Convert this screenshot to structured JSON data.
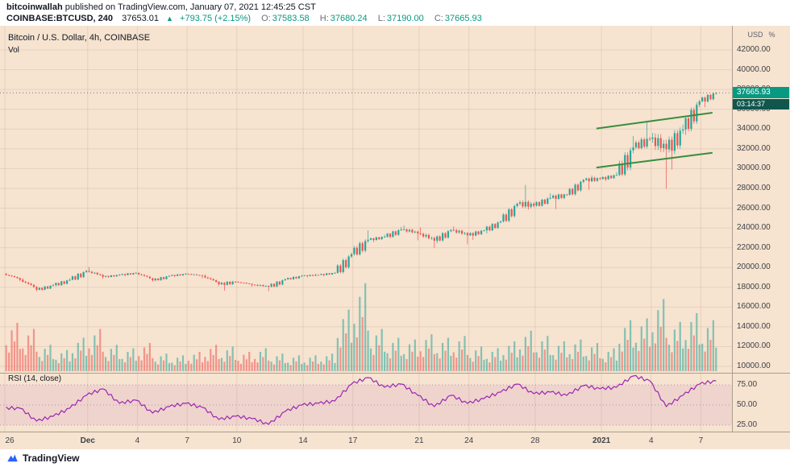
{
  "header": {
    "author": "bitcoinwallah",
    "published": " published on TradingView.com, January 07, 2021 12:45:25 CST",
    "symbol": "COINBASE:BTCUSD, 240",
    "last_price": "37653.01",
    "arrow": "▲",
    "change": "+793.75 (+2.15%)",
    "ohlc": [
      {
        "label": "O:",
        "value": "37583.58"
      },
      {
        "label": "H:",
        "value": "37680.24"
      },
      {
        "label": "L:",
        "value": "37190.00"
      },
      {
        "label": "C:",
        "value": "37665.93"
      }
    ]
  },
  "legend": {
    "title": "Bitcoin / U.S. Dollar, 4h, COINBASE",
    "volume": "Vol"
  },
  "rsi_legend": "RSI (14, close)",
  "price_axis": {
    "currency": "USD",
    "percent": "%",
    "last_price": "37665.93",
    "countdown": "03:14:37"
  },
  "footer": {
    "brand": "TradingView"
  },
  "colors": {
    "up": "#26a69a",
    "down": "#ef5350",
    "volume_up": "rgba(38,166,154,0.55)",
    "volume_down": "rgba(239,83,80,0.55)",
    "trendline": "#388e3c",
    "rsi": "#9c27b0",
    "rsi_band": "rgba(156,39,176,0.08)",
    "rsi_dotted": "rgba(140,70,150,0.5)",
    "grid": "rgba(134,96,60,0.13)",
    "price_line": "#6a7780",
    "price_label_bg": "#089981",
    "countdown_bg": "#11564d",
    "background": "#f6e3d0",
    "accent": "#089981"
  },
  "chart_data": {
    "type": "candlestick",
    "title": "Bitcoin / U.S. Dollar, 4h, COINBASE",
    "panes": [
      "price+volume",
      "rsi"
    ],
    "interval_minutes": 240,
    "y_axis": {
      "min": 10000,
      "max": 42000,
      "tick_step": 2000,
      "unit": "USD"
    },
    "last_price": 37665.93,
    "columns": [
      "date",
      "open",
      "high",
      "low",
      "close",
      "volume_rel",
      "rsi14"
    ],
    "days": [
      [
        "Nov 26",
        19350,
        19450,
        18600,
        18750,
        55,
        46
      ],
      [
        "Nov 27",
        18750,
        18900,
        17580,
        17750,
        48,
        30
      ],
      [
        "Nov 28",
        17750,
        18350,
        17650,
        18200,
        30,
        36
      ],
      [
        "Nov 29",
        18200,
        18900,
        18100,
        18750,
        24,
        46
      ],
      [
        "Nov 30",
        18750,
        19750,
        18700,
        19650,
        38,
        62
      ],
      [
        "Dec 1",
        19650,
        20050,
        18850,
        19050,
        48,
        70
      ],
      [
        "Dec 2",
        19050,
        19350,
        18950,
        19250,
        30,
        52
      ],
      [
        "Dec 3",
        19250,
        19550,
        19100,
        19450,
        26,
        56
      ],
      [
        "Dec 4",
        19450,
        19500,
        18550,
        18700,
        32,
        40
      ],
      [
        "Dec 5",
        18700,
        19200,
        18600,
        19150,
        20,
        48
      ],
      [
        "Dec 6",
        19150,
        19450,
        19050,
        19350,
        18,
        52
      ],
      [
        "Dec 7",
        19350,
        19400,
        18900,
        19150,
        22,
        47
      ],
      [
        "Dec 8",
        19150,
        19300,
        18150,
        18300,
        30,
        32
      ],
      [
        "Dec 9",
        18300,
        18650,
        17650,
        18550,
        28,
        36
      ],
      [
        "Dec 10",
        18550,
        18600,
        18050,
        18250,
        22,
        33
      ],
      [
        "Dec 11",
        18250,
        18300,
        17600,
        18050,
        26,
        26
      ],
      [
        "Dec 12",
        18050,
        18900,
        18000,
        18800,
        20,
        42
      ],
      [
        "Dec 13",
        18800,
        19250,
        18750,
        19150,
        18,
        50
      ],
      [
        "Dec 14",
        19150,
        19350,
        19000,
        19250,
        18,
        52
      ],
      [
        "Dec 15",
        19250,
        19550,
        19100,
        19450,
        20,
        55
      ],
      [
        "Dec 16",
        19450,
        21500,
        19400,
        21350,
        70,
        76
      ],
      [
        "Dec 17",
        21350,
        23750,
        21200,
        22800,
        100,
        84
      ],
      [
        "Dec 18",
        22800,
        23300,
        22550,
        23100,
        48,
        72
      ],
      [
        "Dec 19",
        23100,
        24100,
        22950,
        23850,
        38,
        76
      ],
      [
        "Dec 20",
        23850,
        24250,
        22750,
        23450,
        36,
        62
      ],
      [
        "Dec 21",
        23450,
        24050,
        21950,
        22700,
        42,
        48
      ],
      [
        "Dec 22",
        22700,
        23850,
        22450,
        23800,
        38,
        62
      ],
      [
        "Dec 23",
        23800,
        24150,
        22350,
        23250,
        40,
        52
      ],
      [
        "Dec 24",
        23250,
        23800,
        22800,
        23750,
        28,
        58
      ],
      [
        "Dec 25",
        23750,
        24750,
        23450,
        24650,
        26,
        66
      ],
      [
        "Dec 26",
        24650,
        26550,
        24550,
        26450,
        34,
        76
      ],
      [
        "Dec 27",
        26450,
        28350,
        25850,
        26250,
        46,
        64
      ],
      [
        "Dec 28",
        26250,
        27500,
        26150,
        27050,
        40,
        66
      ],
      [
        "Dec 29",
        27050,
        27450,
        25900,
        27350,
        34,
        62
      ],
      [
        "Dec 30",
        27350,
        28950,
        27250,
        28850,
        36,
        74
      ],
      [
        "Dec 31",
        28850,
        29300,
        27850,
        28950,
        32,
        70
      ],
      [
        "Jan 1",
        28950,
        29650,
        28750,
        29350,
        26,
        72
      ],
      [
        "Jan 2",
        29350,
        33300,
        29250,
        32150,
        58,
        86
      ],
      [
        "Jan 3",
        32150,
        34800,
        31950,
        33000,
        60,
        80
      ],
      [
        "Jan 4",
        33000,
        33600,
        27950,
        31950,
        82,
        48
      ],
      [
        "Jan 5",
        31950,
        34450,
        29900,
        33950,
        56,
        62
      ],
      [
        "Jan 6",
        33950,
        36950,
        33400,
        36800,
        66,
        76
      ],
      [
        "Jan 7",
        36800,
        37680,
        36200,
        37665.93,
        58,
        80
      ]
    ],
    "x_labels": [
      [
        0,
        "26",
        false
      ],
      [
        5,
        "Dec",
        true
      ],
      [
        8,
        "4",
        false
      ],
      [
        11,
        "7",
        false
      ],
      [
        14,
        "10",
        false
      ],
      [
        18,
        "14",
        false
      ],
      [
        21,
        "17",
        false
      ],
      [
        25,
        "21",
        false
      ],
      [
        28,
        "24",
        false
      ],
      [
        32,
        "28",
        false
      ],
      [
        36,
        "2021",
        true
      ],
      [
        39,
        "4",
        false
      ],
      [
        42,
        "7",
        false
      ]
    ],
    "trendlines": [
      {
        "name": "channel-top",
        "from_day": 35.7,
        "from_price": 34050,
        "to_day": 42.7,
        "to_price": 35650
      },
      {
        "name": "channel-bottom",
        "from_day": 35.7,
        "from_price": 30100,
        "to_day": 42.7,
        "to_price": 31600
      }
    ],
    "rsi": {
      "ticks": [
        75,
        50,
        25
      ],
      "band": [
        25,
        75
      ]
    }
  }
}
